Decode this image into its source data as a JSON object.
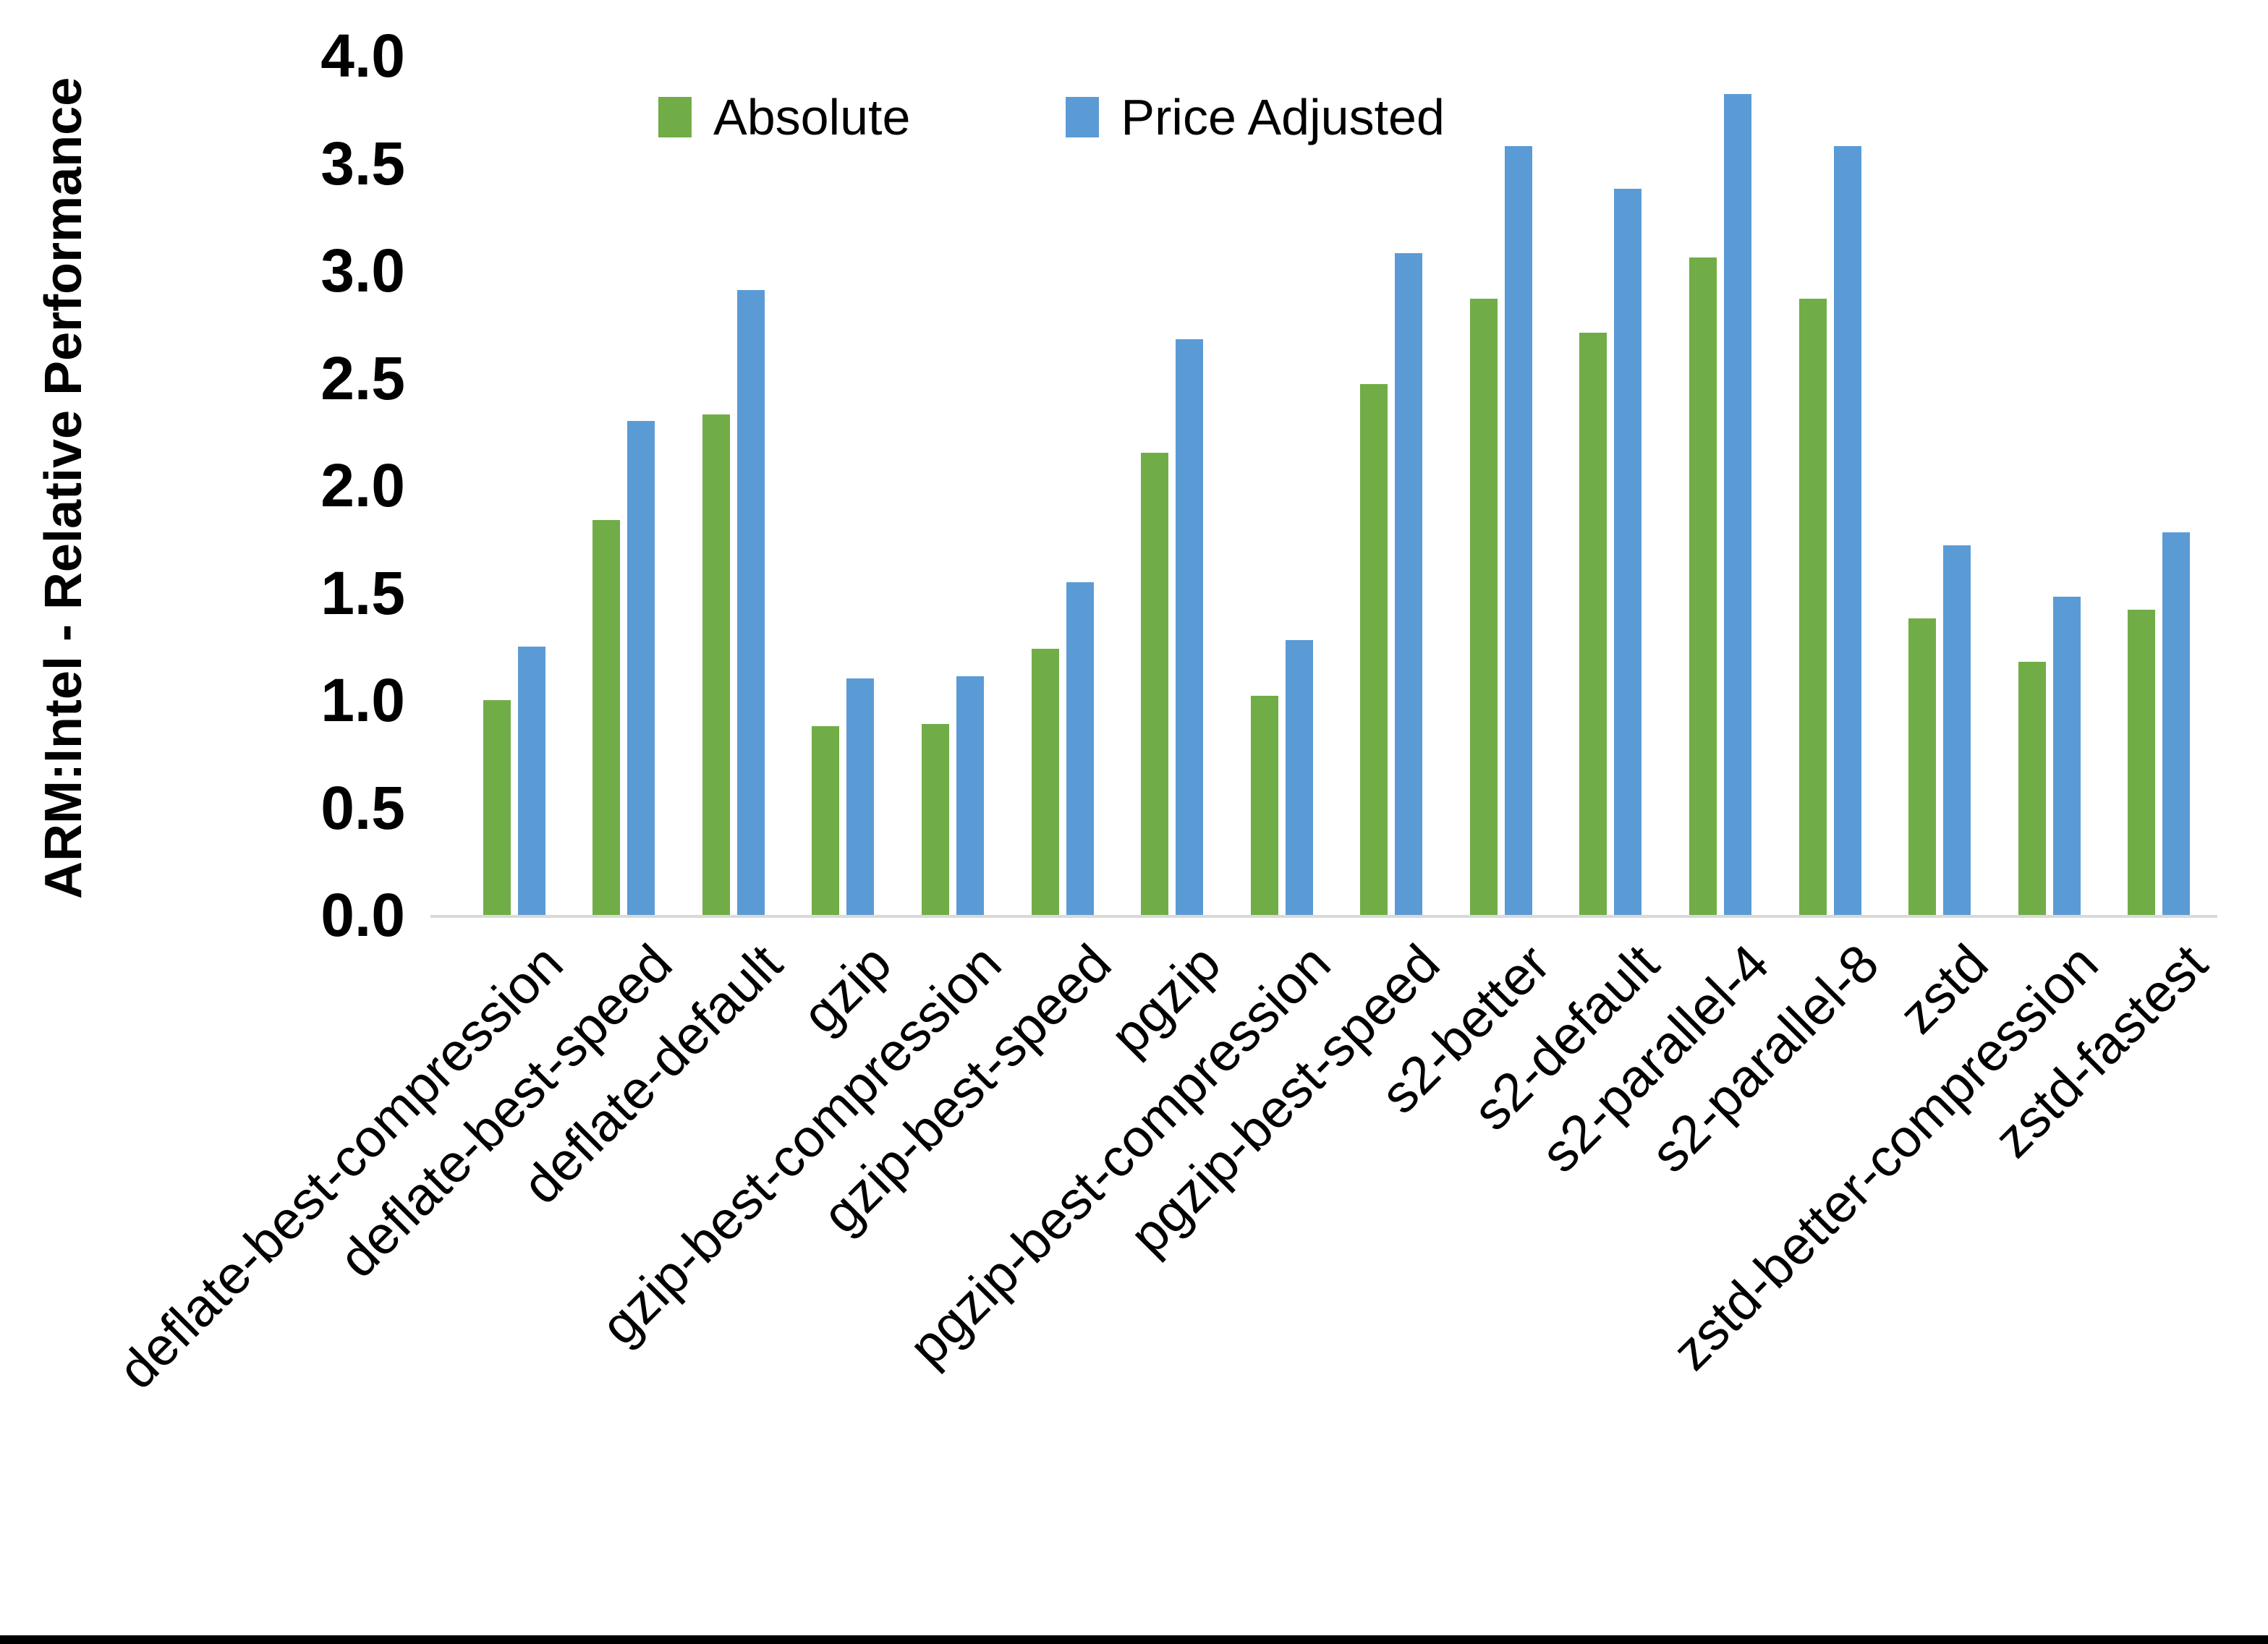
{
  "chart_data": {
    "type": "bar",
    "title": "",
    "xlabel": "",
    "ylabel": "ARM:Intel - Relative Performance",
    "ylim": [
      0.0,
      4.0
    ],
    "ytick_labels": [
      "0.0",
      "0.5",
      "1.0",
      "1.5",
      "2.0",
      "2.5",
      "3.0",
      "3.5",
      "4.0"
    ],
    "grid": false,
    "legend_position": "top-center",
    "categories": [
      "deflate-best-compression",
      "deflate-best-speed",
      "deflate-default",
      "gzip",
      "gzip-best-compression",
      "gzip-best-speed",
      "pgzip",
      "pgzip-best-compression",
      "pgzip-best-speed",
      "s2-better",
      "s2-default",
      "s2-parallel-4",
      "s2-parallel-8",
      "zstd",
      "zstd-better-compression",
      "zstd-fastest"
    ],
    "series": [
      {
        "name": "Absolute",
        "color": "#70AD47",
        "values": [
          1.0,
          1.84,
          2.33,
          0.88,
          0.89,
          1.24,
          2.15,
          1.02,
          2.47,
          2.87,
          2.71,
          3.06,
          2.87,
          1.38,
          1.18,
          1.42
        ]
      },
      {
        "name": "Price Adjusted",
        "color": "#5B9BD5",
        "values": [
          1.25,
          2.3,
          2.91,
          1.1,
          1.11,
          1.55,
          2.68,
          1.28,
          3.08,
          3.58,
          3.38,
          3.82,
          3.58,
          1.72,
          1.48,
          1.78
        ]
      }
    ]
  },
  "colors": {
    "background": "#FFFFFF",
    "axis_line": "#D9D9D9",
    "text": "#000000",
    "bottom_bar": "#000000"
  }
}
